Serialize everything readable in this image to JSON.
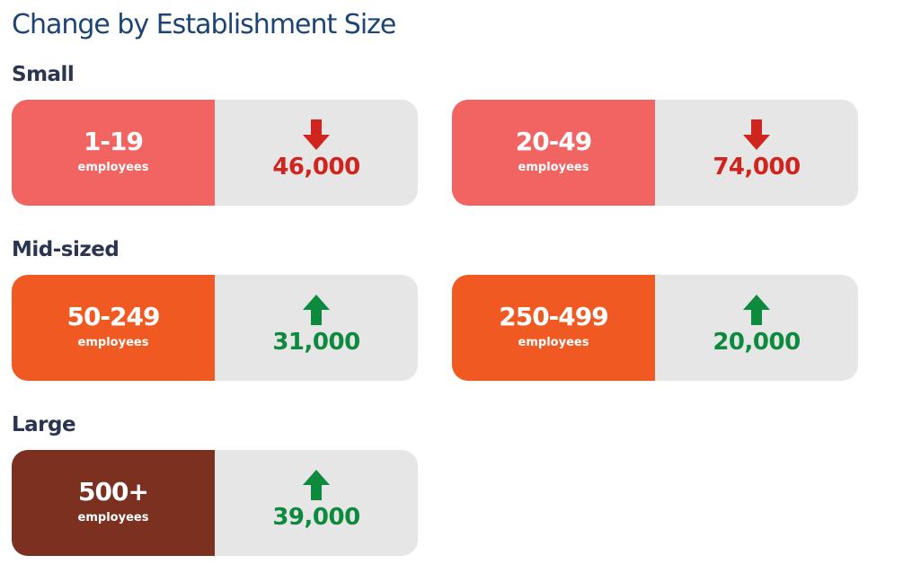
{
  "title": "Change by Establishment Size",
  "groups": [
    {
      "label": "Small",
      "color": "#f26462",
      "cards": [
        {
          "range": "1-19",
          "unit": "employees",
          "change": "46,000",
          "direction": "down"
        },
        {
          "range": "20-49",
          "unit": "employees",
          "change": "74,000",
          "direction": "down"
        }
      ]
    },
    {
      "label": "Mid-sized",
      "color": "#f05a22",
      "cards": [
        {
          "range": "50-249",
          "unit": "employees",
          "change": "31,000",
          "direction": "up"
        },
        {
          "range": "250-499",
          "unit": "employees",
          "change": "20,000",
          "direction": "up"
        }
      ]
    },
    {
      "label": "Large",
      "color": "#7b3020",
      "cards": [
        {
          "range": "500+",
          "unit": "employees",
          "change": "39,000",
          "direction": "up"
        }
      ]
    }
  ]
}
